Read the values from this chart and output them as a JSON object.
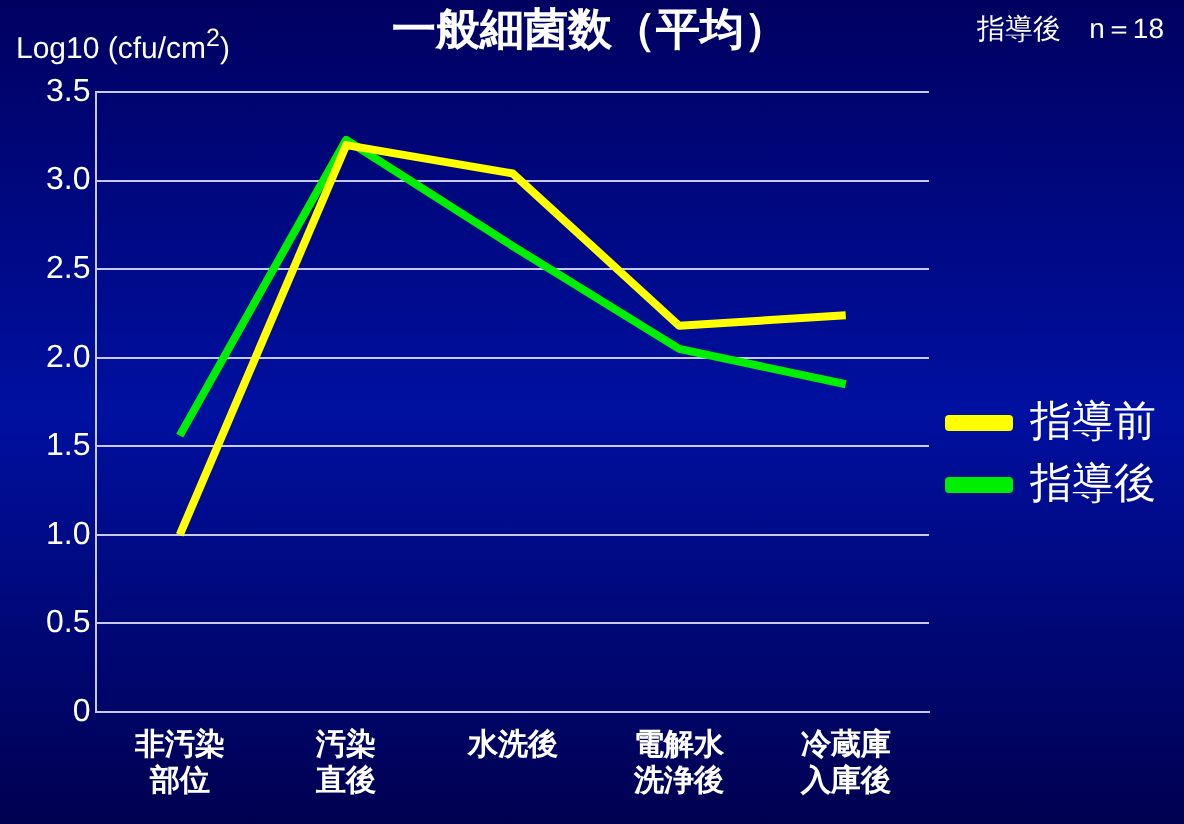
{
  "chart_data": {
    "type": "line",
    "title": "一般細菌数（平均）",
    "ylabel": "Log10 (cfu/cm$^{2}$)",
    "annotations": [
      "指導後　n＝18"
    ],
    "categories": [
      "非汚染部位",
      "汚染直後",
      "水洗後",
      "電解水洗浄後",
      "冷蔵庫入庫後"
    ],
    "series": [
      {
        "name": "指導前",
        "color": "#ffff00",
        "values": [
          1.0,
          3.2,
          3.04,
          2.18,
          2.24
        ]
      },
      {
        "name": "指導後",
        "color": "#00ee00",
        "values": [
          1.56,
          3.23,
          2.63,
          2.05,
          1.85
        ]
      }
    ],
    "ylim": [
      0,
      3.5
    ],
    "yticks": [
      {
        "value": 0,
        "label": "0"
      },
      {
        "value": 0.5,
        "label": "0.5"
      },
      {
        "value": 1,
        "label": "1.0"
      },
      {
        "value": 1.5,
        "label": "1.5"
      },
      {
        "value": 2,
        "label": "2.0"
      },
      {
        "value": 2.5,
        "label": "2.5"
      },
      {
        "value": 3,
        "label": "3.0"
      },
      {
        "value": 3.5,
        "label": "3.5"
      }
    ],
    "grid": "y",
    "legend": "right",
    "line_style": "solid",
    "marker": "none"
  }
}
